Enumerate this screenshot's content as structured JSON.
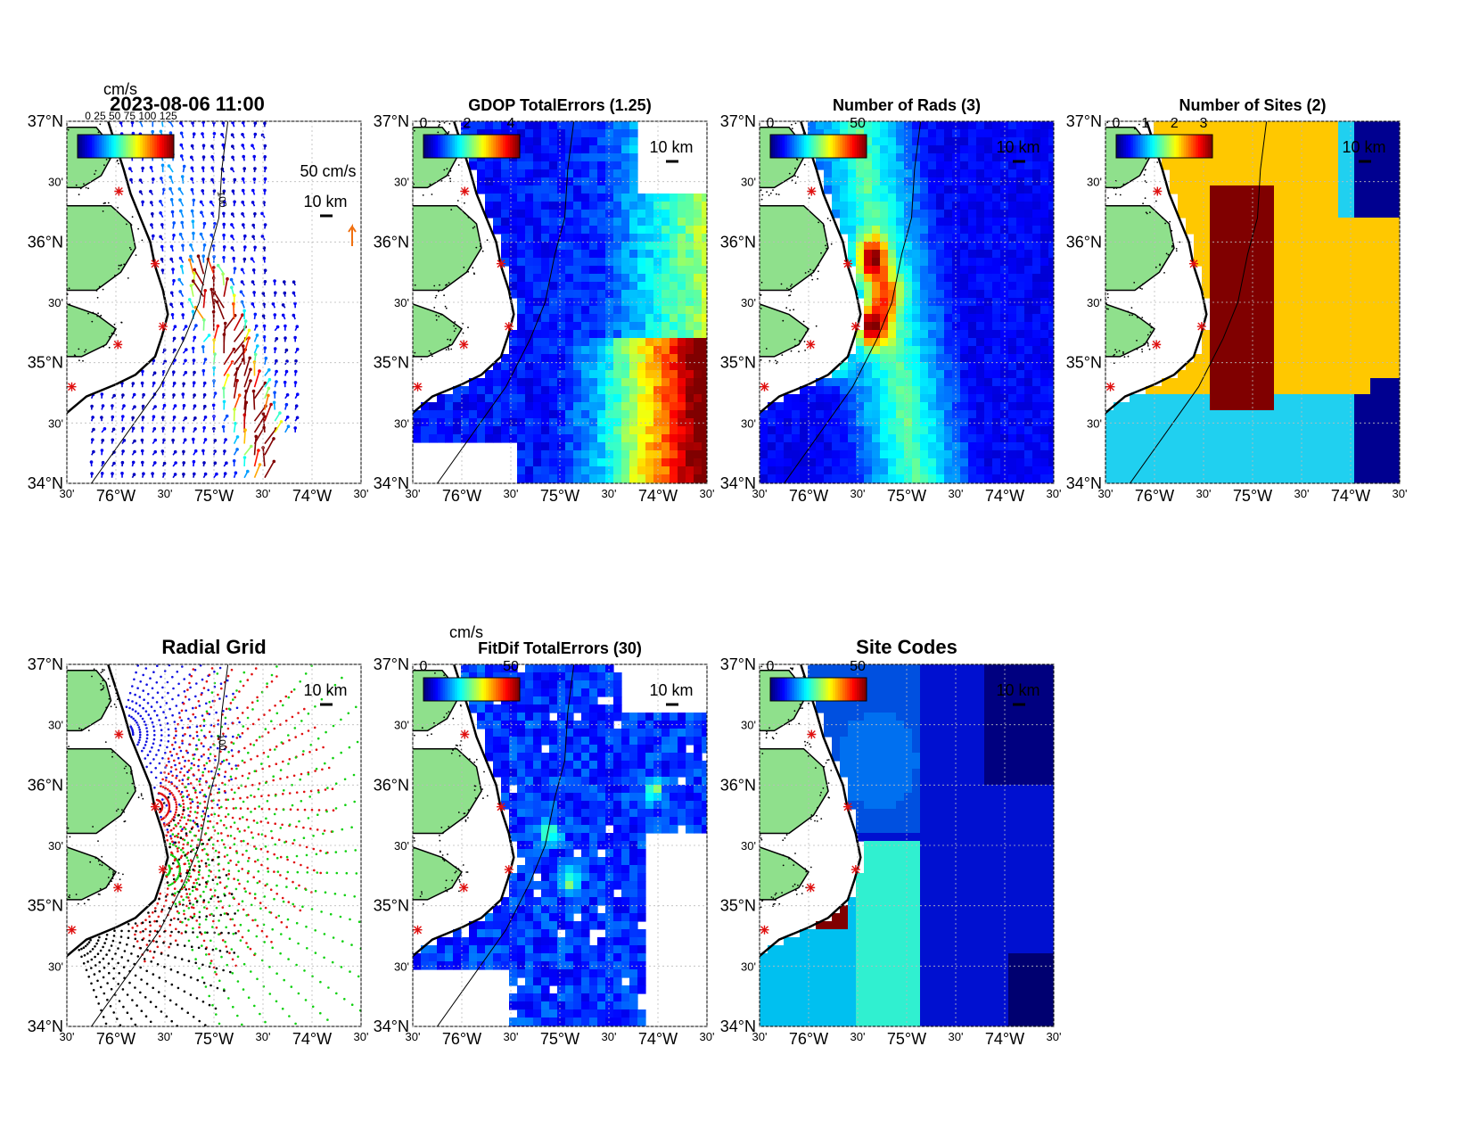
{
  "figure_timestamp": "2023-08-06 11:00",
  "velocity_units": "cm/s",
  "colors": {
    "land": "#8fe08c",
    "coast": "#000000",
    "site_marker": "#e01010",
    "nodata": "#ffffff",
    "grid_dots": [
      "#1010e0",
      "#e01010",
      "#10d010",
      "#000000"
    ]
  },
  "colormap": "jet",
  "axes": {
    "lat_labels": [
      "37°N",
      "30'",
      "36°N",
      "30'",
      "35°N",
      "30'",
      "34°N"
    ],
    "lon_labels": [
      "30'",
      "76°W",
      "30'",
      "75°W",
      "30'",
      "74°W",
      "30'"
    ]
  },
  "scale_bar_label": "10 km",
  "panels": [
    {
      "id": "total-velocity",
      "title": "2023-08-06 11:00",
      "colorbar_label": "cm/s",
      "colorbar_ticks": [],
      "vector_scale_label": "50 cm/s",
      "contour_label": "100",
      "legend_overlap_text": "0 25 50 75 100 125"
    },
    {
      "id": "gdop-total-errors",
      "title": "GDOP TotalErrors (1.25)",
      "colorbar_label": "",
      "colorbar_ticks": [
        "0",
        "2",
        "4"
      ],
      "contour_label": "1.25"
    },
    {
      "id": "number-of-rads",
      "title": "Number of Rads (3)",
      "colorbar_label": "",
      "colorbar_ticks": [
        "0",
        "50"
      ],
      "contour_label": "3"
    },
    {
      "id": "number-of-sites",
      "title": "Number of Sites (2)",
      "colorbar_label": "",
      "colorbar_ticks": [
        "0",
        "1",
        "2",
        "3"
      ],
      "contour_label": "2"
    },
    {
      "id": "radial-grid",
      "title": "Radial Grid",
      "colorbar_label": "",
      "colorbar_ticks": [],
      "contour_label": "100"
    },
    {
      "id": "fitdif-total-errors",
      "title": "FitDif TotalErrors (30)",
      "colorbar_label": "cm/s",
      "colorbar_ticks": [
        "0",
        "50"
      ],
      "contour_label": "30"
    },
    {
      "id": "site-codes",
      "title": "Site Codes",
      "colorbar_label": "",
      "colorbar_ticks": [
        "0",
        "50"
      ],
      "contour_label": ""
    }
  ]
}
